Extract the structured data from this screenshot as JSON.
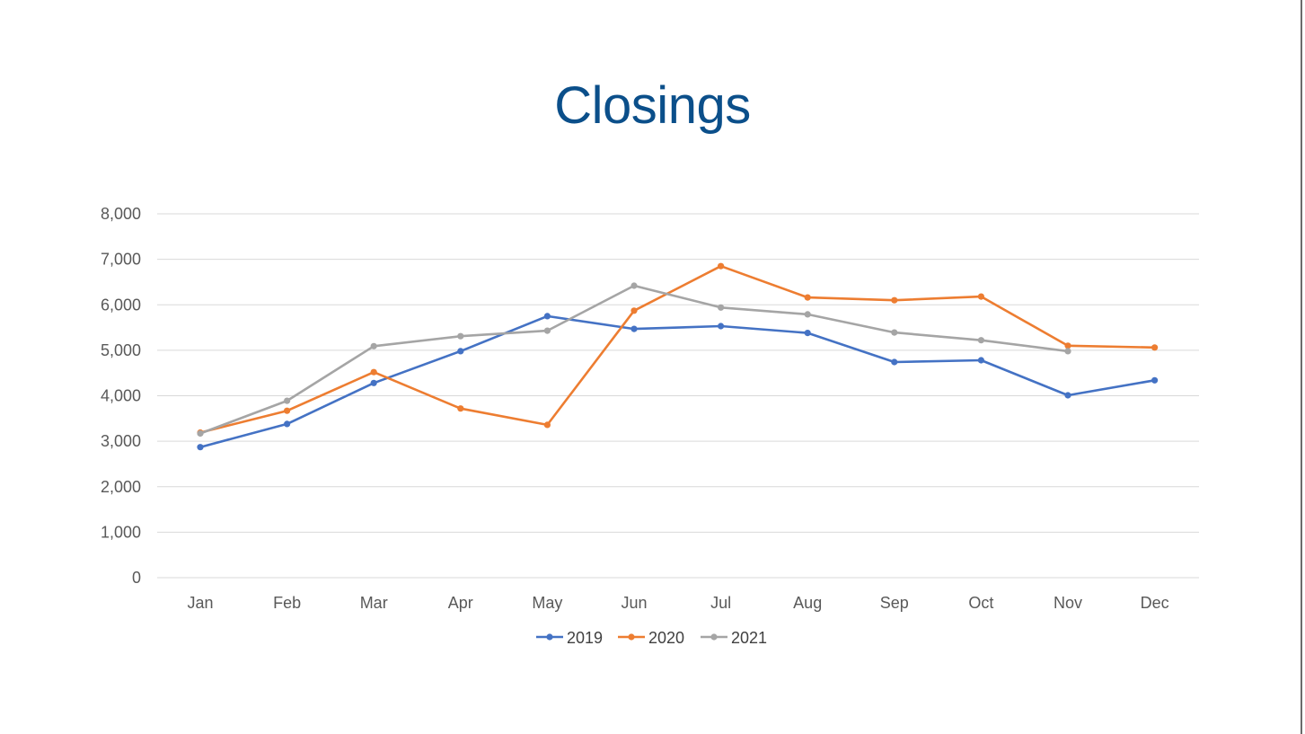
{
  "chart_data": {
    "type": "line",
    "title": "Closings",
    "xlabel": "",
    "ylabel": "",
    "categories": [
      "Jan",
      "Feb",
      "Mar",
      "Apr",
      "May",
      "Jun",
      "Jul",
      "Aug",
      "Sep",
      "Oct",
      "Nov",
      "Dec"
    ],
    "ylim": [
      0,
      8000
    ],
    "yticks": [
      0,
      1000,
      2000,
      3000,
      4000,
      5000,
      6000,
      7000,
      8000
    ],
    "ytick_labels": [
      "0",
      "1,000",
      "2,000",
      "3,000",
      "4,000",
      "5,000",
      "6,000",
      "7,000",
      "8,000"
    ],
    "grid": true,
    "legend_position": "bottom",
    "series": [
      {
        "name": "2019",
        "color": "#4472c4",
        "values": [
          2870,
          3380,
          4280,
          4980,
          5750,
          5470,
          5530,
          5380,
          4740,
          4780,
          4010,
          4340
        ]
      },
      {
        "name": "2020",
        "color": "#ed7d31",
        "values": [
          3190,
          3670,
          4520,
          3720,
          3360,
          5870,
          6850,
          6160,
          6100,
          6180,
          5100,
          5060
        ]
      },
      {
        "name": "2021",
        "color": "#a5a5a5",
        "values": [
          3170,
          3890,
          5090,
          5310,
          5430,
          6420,
          5940,
          5790,
          5390,
          5220,
          4980,
          null
        ]
      }
    ]
  }
}
